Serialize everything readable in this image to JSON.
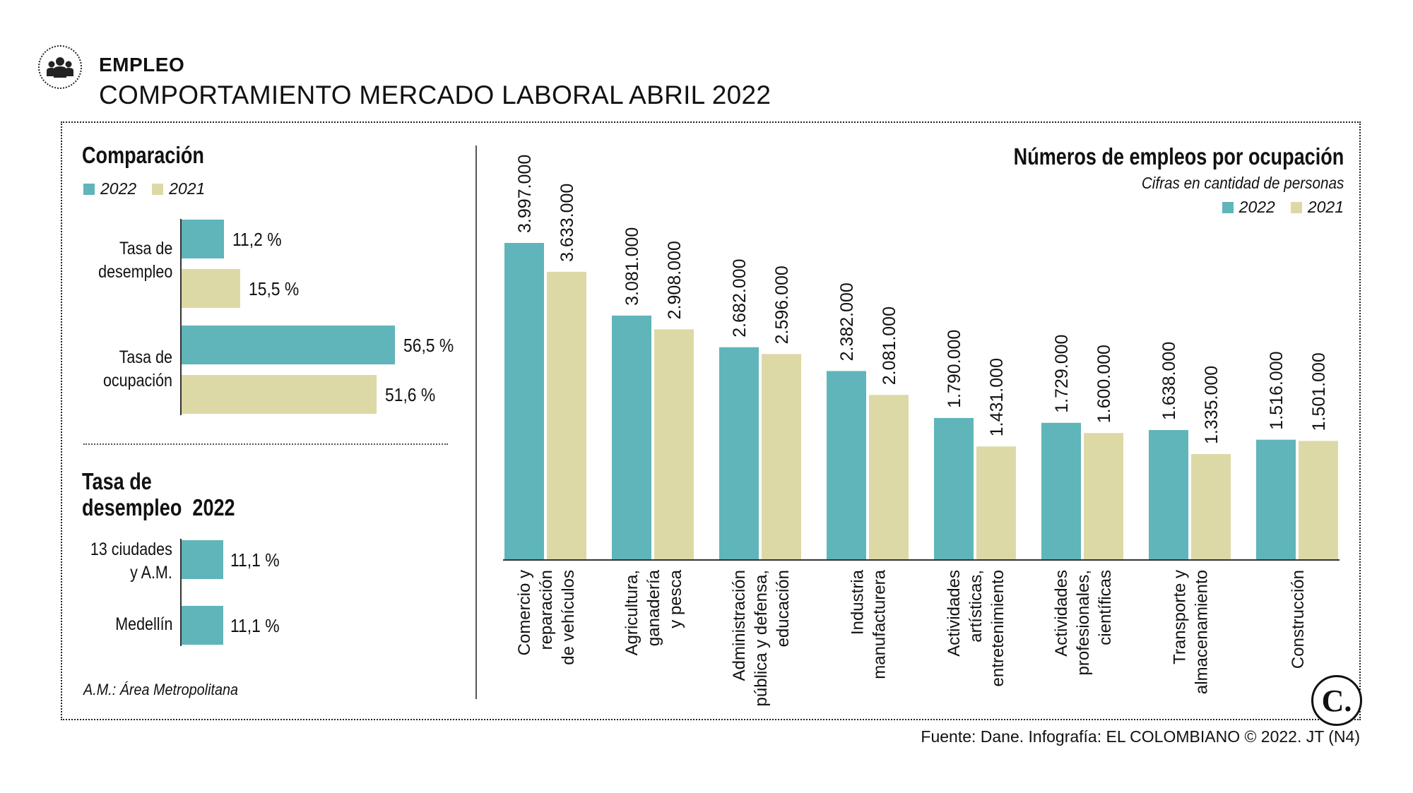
{
  "header": {
    "icon": "people-group-icon",
    "kicker": "EMPLEO",
    "title": "COMPORTAMIENTO MERCADO LABORAL ABRIL 2022"
  },
  "colors": {
    "y2022": "#5fb5b9",
    "y2021": "#dcd9a6"
  },
  "comparison": {
    "title": "Comparación",
    "legend": [
      "2022",
      "2021"
    ],
    "rows": [
      {
        "label_line1": "Tasa de",
        "label_line2": "desempleo",
        "bars": [
          {
            "year": "2022",
            "value": 11.2,
            "label": "11,2 %"
          },
          {
            "year": "2021",
            "value": 15.5,
            "label": "15,5 %"
          }
        ]
      },
      {
        "label_line1": "Tasa de",
        "label_line2": "ocupación",
        "bars": [
          {
            "year": "2022",
            "value": 56.5,
            "label": "56,5 %"
          },
          {
            "year": "2021",
            "value": 51.6,
            "label": "51,6 %"
          }
        ]
      }
    ]
  },
  "unemployment2022": {
    "title_line1": "Tasa de",
    "title_line2": "desempleo  2022",
    "rows": [
      {
        "label_line1": "13 ciudades",
        "label_line2": "y A.M.",
        "value": 11.1,
        "label": "11,1 %"
      },
      {
        "label_line1": "Medellín",
        "label_line2": "",
        "value": 11.1,
        "label": "11,1 %"
      }
    ],
    "footnote": "A.M.: Área Metropolitana"
  },
  "chart_data": {
    "type": "bar",
    "title": "Números de empleos por ocupación",
    "subtitle": "Cifras en cantidad de personas",
    "legend": [
      "2022",
      "2021"
    ],
    "categories": [
      [
        "Comercio y",
        "reparación",
        "de vehículos"
      ],
      [
        "Agricultura,",
        "ganadería",
        "y pesca"
      ],
      [
        "Administración",
        "pública y defensa,",
        "educación"
      ],
      [
        "Industria",
        "manufacturera"
      ],
      [
        "Actividades",
        "artísticas,",
        "entretenimiento"
      ],
      [
        "Actividades",
        "profesionales,",
        "científicas"
      ],
      [
        "Transporte y",
        "almacenamiento"
      ],
      [
        "Construcción"
      ]
    ],
    "series": [
      {
        "name": "2022",
        "values": [
          3997000,
          3081000,
          2682000,
          2382000,
          1790000,
          1729000,
          1638000,
          1516000
        ],
        "labels": [
          "3.997.000",
          "3.081.000",
          "2.682.000",
          "2.382.000",
          "1.790.000",
          "1.729.000",
          "1.638.000",
          "1.516.000"
        ]
      },
      {
        "name": "2021",
        "values": [
          3633000,
          2908000,
          2596000,
          2081000,
          1431000,
          1600000,
          1335000,
          1501000
        ],
        "labels": [
          "3.633.000",
          "2.908.000",
          "2.596.000",
          "2.081.000",
          "1.431.000",
          "1.600.000",
          "1.335.000",
          "1.501.000"
        ]
      }
    ]
  },
  "footer": {
    "source": "Fuente: Dane. Infografía: EL COLOMBIANO © 2022. JT (N4)",
    "logo_text": "C."
  }
}
